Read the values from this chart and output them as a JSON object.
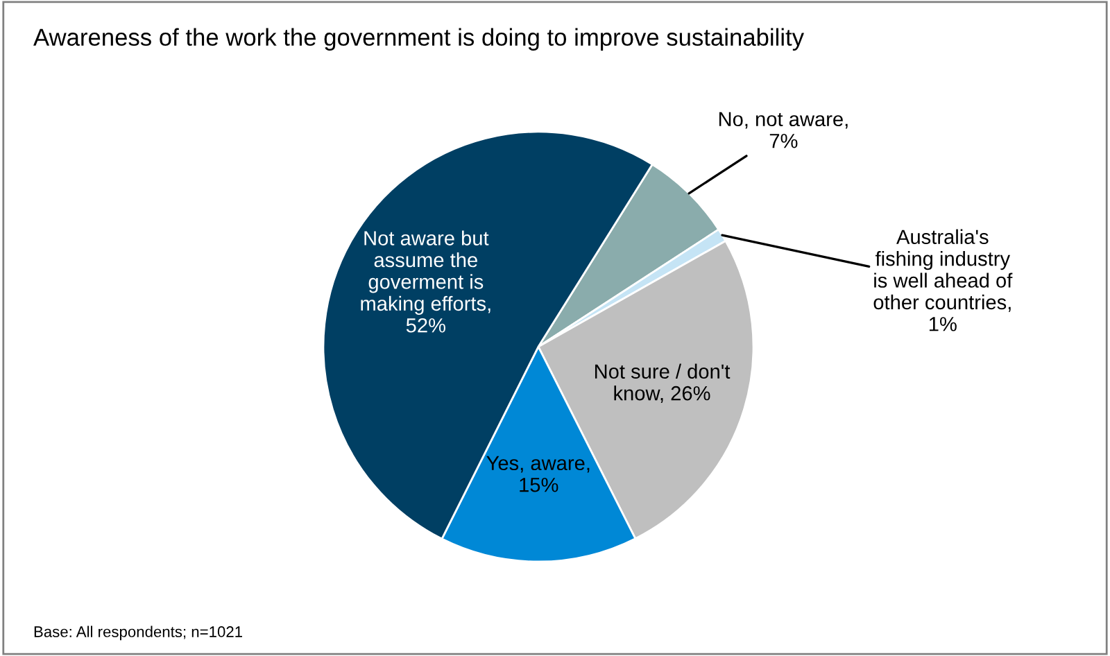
{
  "chart_data": {
    "type": "pie",
    "title": "Awareness of the work the government is doing to improve sustainability",
    "categories": [
      "No, not aware,\n7%",
      "Australia's\nfishing industry\nis well ahead of\nother countries,\n1%",
      "Not sure / don't\nknow, 26%",
      "Yes, aware,\n15%",
      "Not aware but\nassume the\ngoverment is\nmaking efforts,\n52%"
    ],
    "values": [
      7,
      1,
      26,
      15,
      52
    ],
    "colors": [
      "#8aacac",
      "#c5e4f5",
      "#bfbfbf",
      "#0088d6",
      "#003f63"
    ],
    "annotations": [
      "Base: All respondents; n=1021"
    ]
  }
}
